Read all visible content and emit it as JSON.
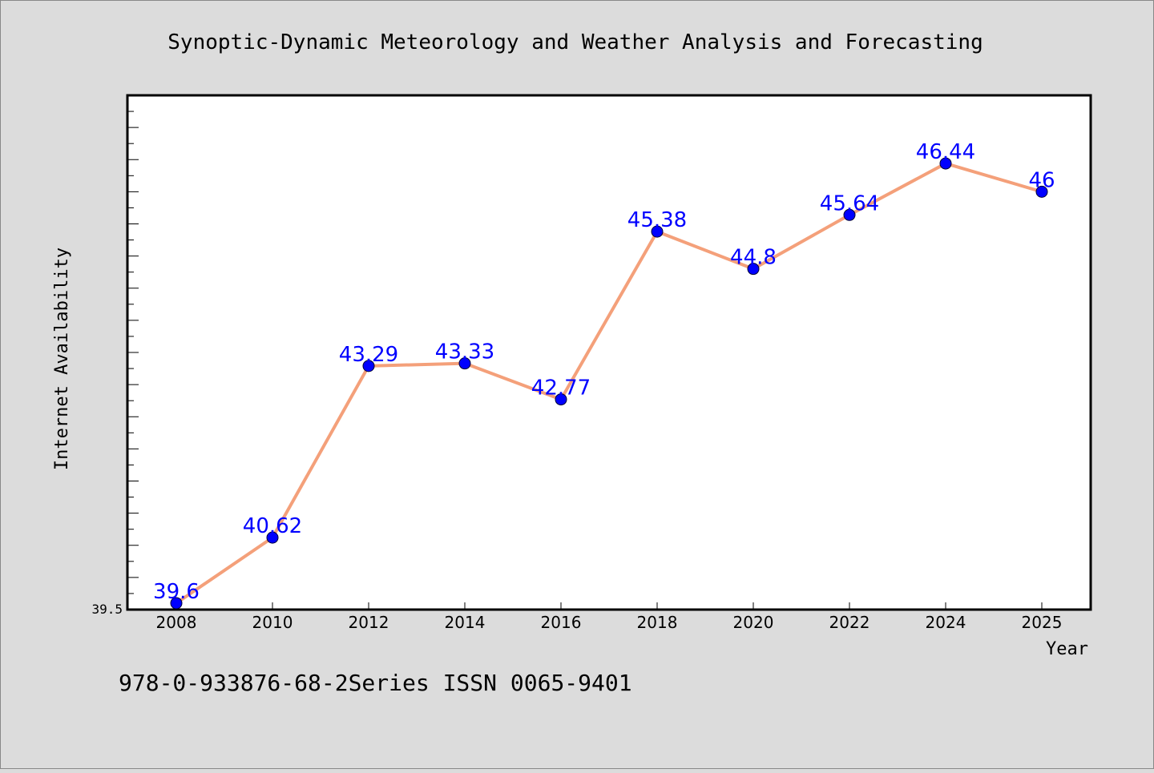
{
  "chart_data": {
    "type": "line",
    "title": "Synoptic-Dynamic Meteorology and Weather Analysis and Forecasting",
    "xlabel": "Year",
    "ylabel": "Internet Availability",
    "x": [
      "2008",
      "2010",
      "2012",
      "2014",
      "2016",
      "2018",
      "2020",
      "2022",
      "2024",
      "2025"
    ],
    "series": [
      {
        "values": [
          39.6,
          40.62,
          43.29,
          43.33,
          42.77,
          45.38,
          44.8,
          45.64,
          46.44,
          46
        ],
        "labels": [
          "39.6",
          "40.62",
          "43.29",
          "43.33",
          "42.77",
          "45.38",
          "44.8",
          "45.64",
          "46.44",
          "46"
        ],
        "line_color": "#f4a07a",
        "marker_color": "#0000ff",
        "label_color": "#0000ff"
      }
    ],
    "ylim": [
      39.5,
      47.5
    ],
    "y_tick_labels": [
      "39.5"
    ],
    "grid": false,
    "legend": false
  },
  "footnote": "978-0-933876-68-2Series ISSN 0065-9401",
  "colors": {
    "background": "#dcdcdc",
    "plot_background": "#ffffff",
    "line": "#f4a07a",
    "marker": "#0000ff"
  }
}
